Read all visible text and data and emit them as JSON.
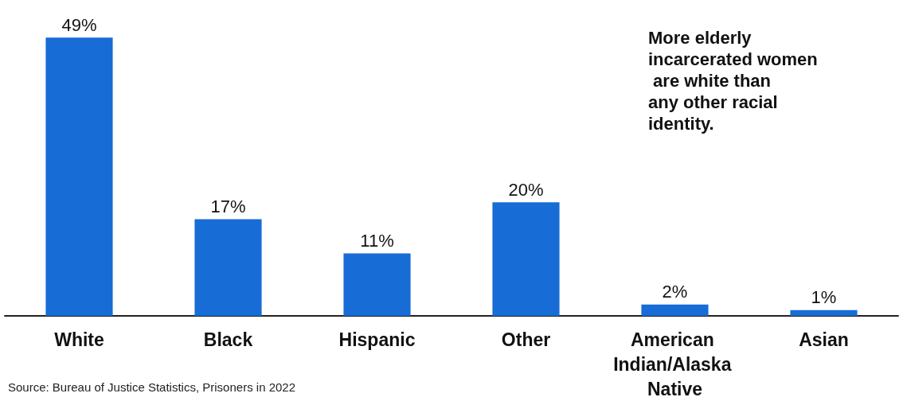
{
  "chart_data": {
    "type": "bar",
    "categories": [
      "White",
      "Black",
      "Hispanic",
      "Other",
      "American Indian/Alaska Native",
      "Asian"
    ],
    "values": [
      49,
      17,
      11,
      20,
      2,
      1
    ],
    "value_labels": [
      "49%",
      "17%",
      "11%",
      "20%",
      "2%",
      "1%"
    ],
    "color": "#176cd6",
    "annotations": [
      "More elderly incarcerated women are white than any other racial identity.",
      "Source: Bureau of Justice Statistics, Prisoners in 2022"
    ]
  }
}
